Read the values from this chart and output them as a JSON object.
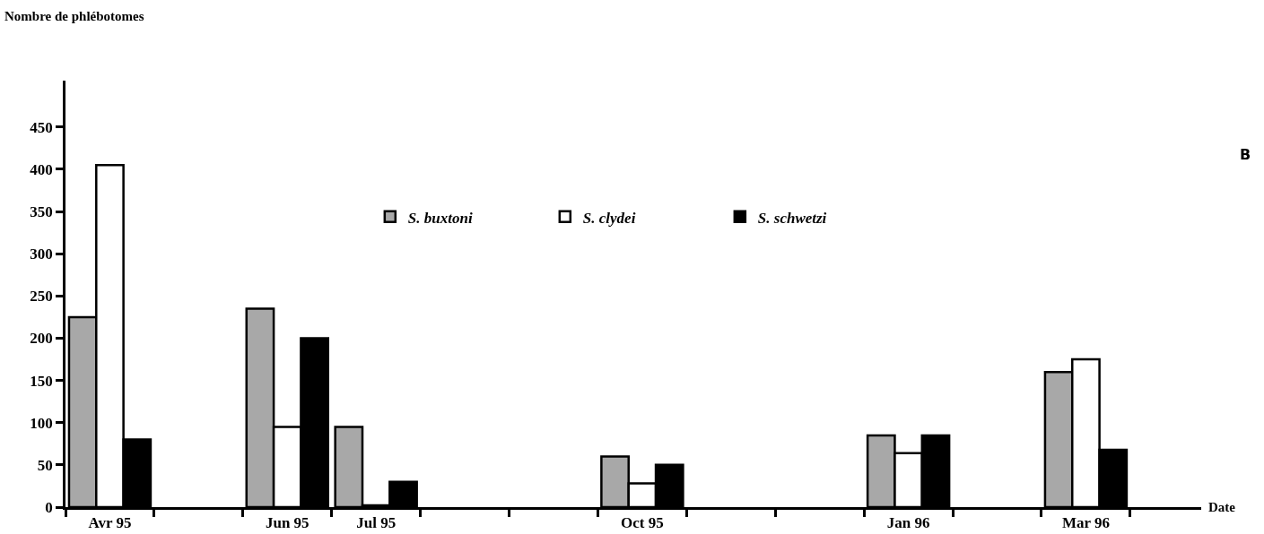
{
  "chart_data": {
    "type": "bar",
    "xlabel": "Date",
    "ylabel": "Nombre de phlébotomes",
    "categories": [
      "Avr 95",
      null,
      "Jun 95",
      "Jul 95",
      null,
      null,
      "Oct 95",
      null,
      null,
      "Jan 96",
      null,
      "Mar 96"
    ],
    "series": [
      {
        "name": "S. buxtoni",
        "color": "#a8a8a8",
        "values": [
          225,
          null,
          235,
          95,
          null,
          null,
          60,
          null,
          null,
          85,
          null,
          160
        ]
      },
      {
        "name": "S. clydei",
        "color": "#ffffff",
        "values": [
          405,
          null,
          95,
          2,
          null,
          null,
          28,
          null,
          null,
          64,
          null,
          175
        ]
      },
      {
        "name": "S. schwetzi",
        "color": "#000000",
        "values": [
          80,
          null,
          200,
          30,
          null,
          null,
          50,
          null,
          null,
          85,
          null,
          68
        ]
      }
    ],
    "ylim": [
      0,
      505
    ],
    "yticks": [
      0,
      50,
      100,
      150,
      200,
      250,
      300,
      350,
      400,
      450
    ],
    "grid": false,
    "legend": "top",
    "annotations": [
      "B"
    ]
  }
}
